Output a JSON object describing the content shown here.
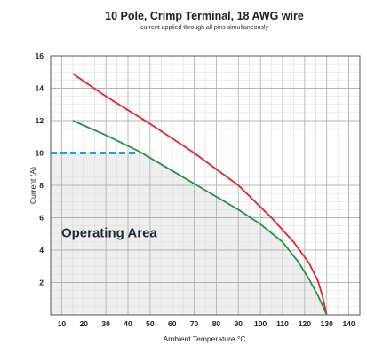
{
  "chart_data": {
    "type": "line",
    "title": "10 Pole, Crimp Terminal, 18 AWG wire",
    "subtitle": "current applied through all pins simultaneously",
    "xlabel": "Ambient Temperature °C",
    "ylabel": "Current (A)",
    "xlim": [
      5,
      145
    ],
    "ylim": [
      0,
      16
    ],
    "x_ticks": [
      10,
      20,
      30,
      40,
      50,
      60,
      70,
      80,
      90,
      100,
      110,
      120,
      130,
      140
    ],
    "y_ticks": [
      2,
      4,
      6,
      8,
      10,
      12,
      14,
      16
    ],
    "grid": true,
    "minor_grid": true,
    "area_label": "Operating Area",
    "series": [
      {
        "color": "#e3232b",
        "x": [
          15,
          30,
          50,
          70,
          90,
          105,
          115,
          122,
          126,
          128,
          130
        ],
        "y": [
          14.9,
          13.5,
          11.8,
          10.0,
          8.0,
          6.0,
          4.5,
          3.2,
          2.1,
          1.2,
          0
        ]
      },
      {
        "color": "#1e9646",
        "x": [
          15,
          30,
          45,
          60,
          75,
          90,
          100,
          110,
          117,
          122,
          126,
          130
        ],
        "y": [
          12.0,
          11.1,
          10.1,
          8.9,
          7.7,
          6.5,
          5.6,
          4.5,
          3.3,
          2.2,
          1.2,
          0
        ]
      }
    ],
    "reference_line": {
      "y": 10,
      "x_from": 5,
      "x_to": 45,
      "color": "#1ea0dc",
      "style": "dashed"
    },
    "shaded_region_color": "#eeeeee"
  }
}
